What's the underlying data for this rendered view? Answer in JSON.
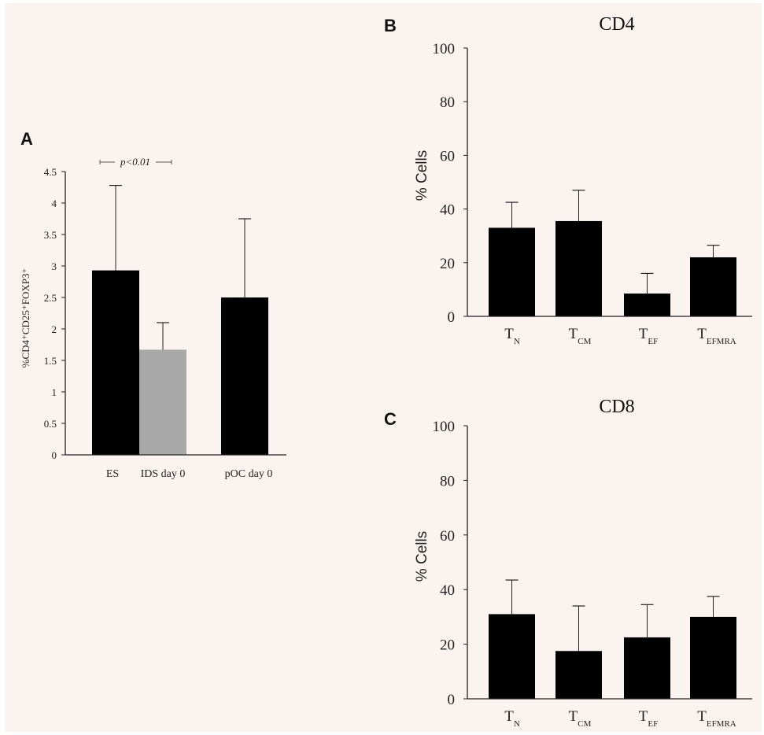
{
  "chart_data": [
    {
      "panel": "A",
      "type": "bar",
      "title": "",
      "ylabel": "%CD4⁺CD25⁺FOXP3⁺",
      "ylim": [
        0,
        4.5
      ],
      "yticks": [
        "0",
        "0.5",
        "1",
        "1.5",
        "2",
        "2.5",
        "3",
        "3.5",
        "4",
        "4.5"
      ],
      "categories": [
        "ES",
        "IDS day 0",
        "pOC day 0"
      ],
      "values": [
        2.93,
        1.67,
        2.5
      ],
      "errors": [
        1.35,
        0.43,
        1.25
      ],
      "colors": [
        "#000000",
        "#a8a8a8",
        "#000000"
      ],
      "annotation": "p<0.01"
    },
    {
      "panel": "B",
      "type": "bar",
      "title": "CD4",
      "ylabel": "% Cells",
      "ylim": [
        0,
        100
      ],
      "yticks": [
        "0",
        "20",
        "40",
        "60",
        "80",
        "100"
      ],
      "categories": [
        {
          "main": "T",
          "sub": "N"
        },
        {
          "main": "T",
          "sub": "CM"
        },
        {
          "main": "T",
          "sub": "EF"
        },
        {
          "main": "T",
          "sub": "EFMRA"
        }
      ],
      "values": [
        33,
        35.5,
        8.5,
        22
      ],
      "errors": [
        9.5,
        11.5,
        7.5,
        4.5
      ],
      "color": "#000000"
    },
    {
      "panel": "C",
      "type": "bar",
      "title": "CD8",
      "ylabel": "% Cells",
      "ylim": [
        0,
        100
      ],
      "yticks": [
        "0",
        "20",
        "40",
        "60",
        "80",
        "100"
      ],
      "categories": [
        {
          "main": "T",
          "sub": "N"
        },
        {
          "main": "T",
          "sub": "CM"
        },
        {
          "main": "T",
          "sub": "EF"
        },
        {
          "main": "T",
          "sub": "EFMRA"
        }
      ],
      "values": [
        31,
        17.5,
        22.5,
        30
      ],
      "errors": [
        12.5,
        16.5,
        12,
        7.5
      ],
      "color": "#000000"
    }
  ],
  "labels": {
    "panel_a": "A",
    "panel_b": "B",
    "panel_c": "C"
  }
}
